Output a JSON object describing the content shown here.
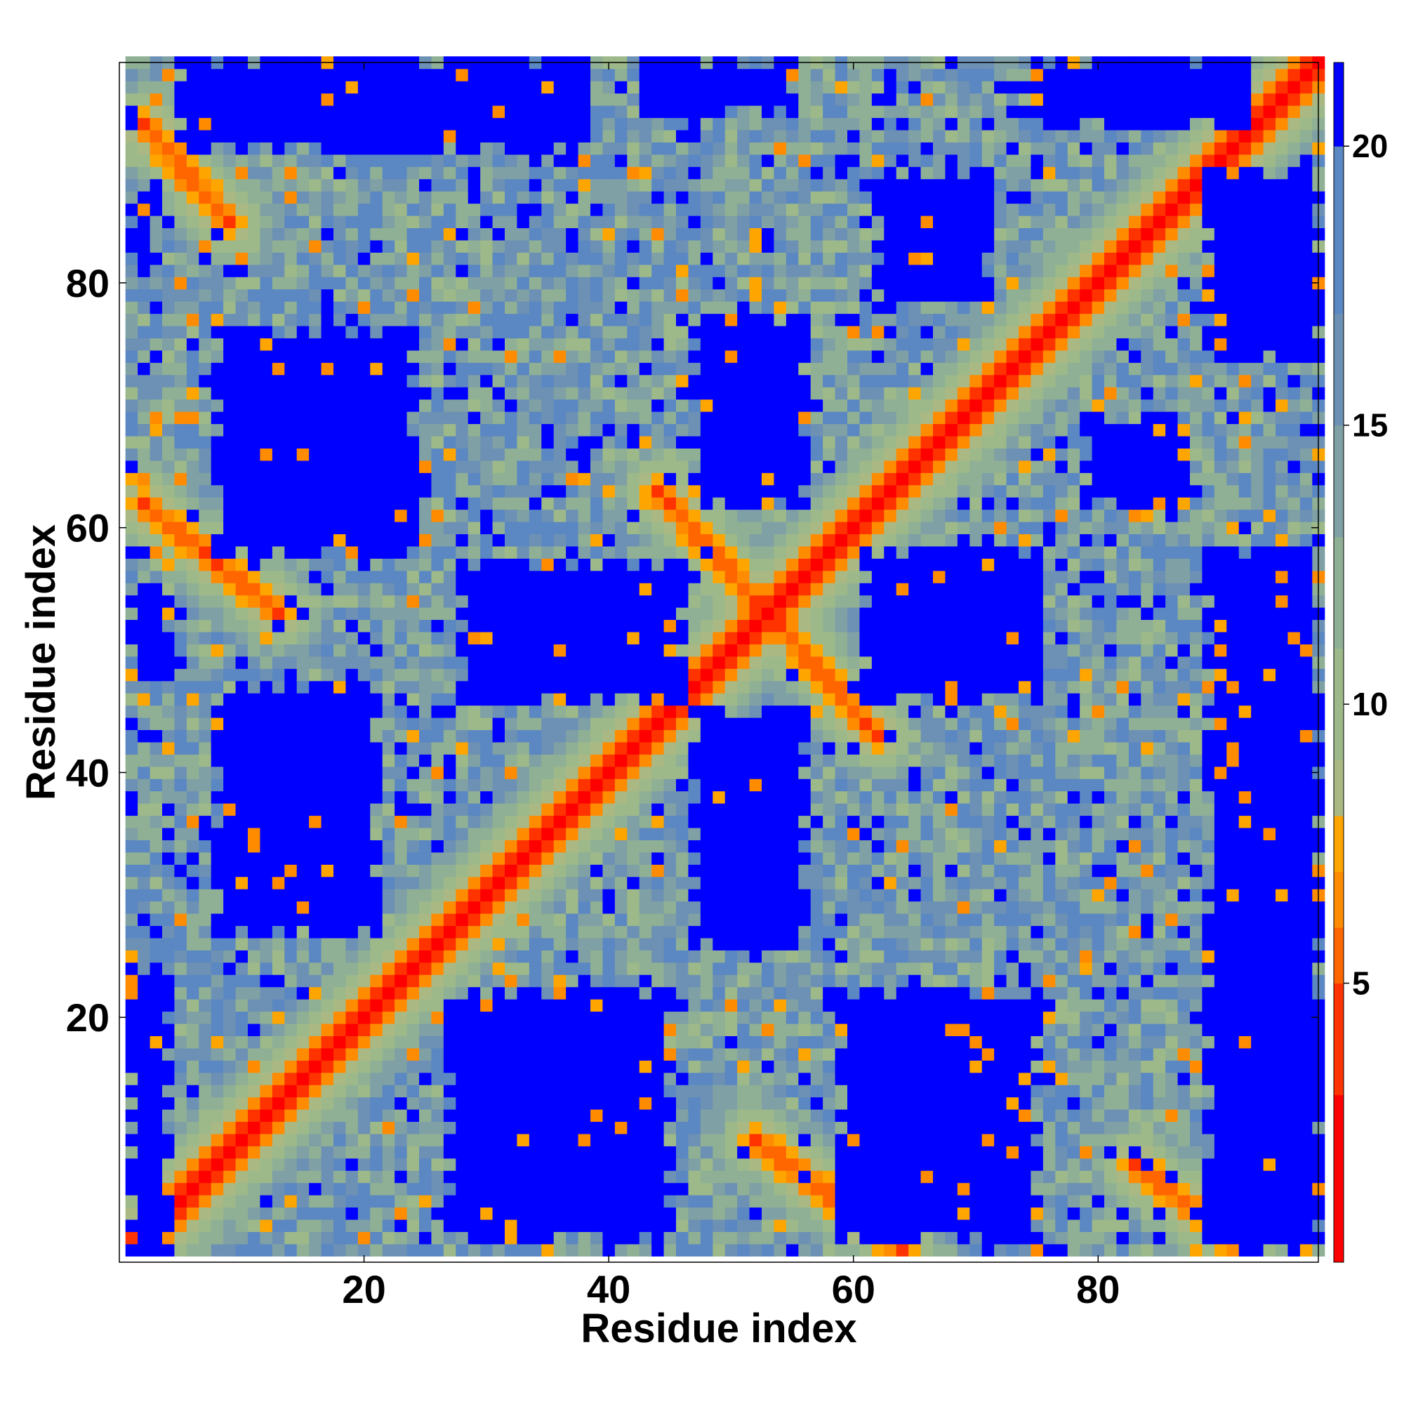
{
  "chart_data": {
    "type": "heatmap",
    "title": "",
    "xlabel": "Residue index",
    "ylabel": "Residue index",
    "n_residues": 98,
    "xlim": [
      1,
      98
    ],
    "ylim": [
      1,
      98
    ],
    "x_ticks": [
      20,
      40,
      60,
      80
    ],
    "y_ticks": [
      20,
      40,
      60,
      80
    ],
    "grid": false,
    "legend": "colorbar-right",
    "colorbar": {
      "ticks": [
        5,
        10,
        15,
        20
      ],
      "range": [
        0,
        21.5
      ],
      "levels": [
        {
          "max": 3,
          "color": "#ff0000"
        },
        {
          "max": 5,
          "color": "#ff3300"
        },
        {
          "max": 6,
          "color": "#ff6600"
        },
        {
          "max": 7,
          "color": "#ff8c00"
        },
        {
          "max": 8,
          "color": "#ffa500"
        },
        {
          "max": 9,
          "color": "#aab884"
        },
        {
          "max": 11,
          "color": "#9db98a"
        },
        {
          "max": 13,
          "color": "#8fb095"
        },
        {
          "max": 15,
          "color": "#7fa0a4"
        },
        {
          "max": 17,
          "color": "#6d91b4"
        },
        {
          "max": 20,
          "color": "#5b87c2"
        },
        {
          "max": 21.5,
          "color": "#0000ff"
        }
      ]
    },
    "structure": {
      "bands": [
        {
          "center_i": 1,
          "center_j": 1,
          "direction": "diagonal",
          "note": "main diagonal i=j"
        },
        {
          "from": [
            2,
            62
          ],
          "to": [
            13,
            53
          ],
          "direction": "anti-diagonal"
        },
        {
          "from": [
            2,
            93
          ],
          "to": [
            9,
            85
          ],
          "direction": "anti-diagonal"
        },
        {
          "from": [
            44,
            63
          ],
          "to": [
            62,
            43
          ],
          "direction": "anti-diagonal"
        },
        {
          "from": [
            52,
            10
          ],
          "to": [
            64,
            1
          ],
          "direction": "anti-diagonal"
        },
        {
          "from": [
            83,
            8
          ],
          "to": [
            92,
            1
          ],
          "direction": "anti-diagonal"
        }
      ],
      "voids": [
        {
          "x": [
            8,
            24
          ],
          "y": [
            58,
            76
          ]
        },
        {
          "x": [
            8,
            21
          ],
          "y": [
            27,
            47
          ]
        },
        {
          "x": [
            28,
            46
          ],
          "y": [
            46,
            57
          ]
        },
        {
          "x": [
            27,
            45
          ],
          "y": [
            2,
            22
          ]
        },
        {
          "x": [
            47,
            56
          ],
          "y": [
            26,
            45
          ]
        },
        {
          "x": [
            47,
            56
          ],
          "y": [
            62,
            77
          ]
        },
        {
          "x": [
            61,
            75
          ],
          "y": [
            46,
            58
          ]
        },
        {
          "x": [
            59,
            75
          ],
          "y": [
            2,
            22
          ]
        },
        {
          "x": [
            62,
            71
          ],
          "y": [
            78,
            89
          ]
        },
        {
          "x": [
            79,
            87
          ],
          "y": [
            62,
            69
          ]
        },
        {
          "x": [
            89,
            98
          ],
          "y": [
            1,
            58
          ]
        },
        {
          "x": [
            89,
            98
          ],
          "y": [
            74,
            89
          ]
        },
        {
          "x": [
            5,
            38
          ],
          "y": [
            91,
            98
          ]
        },
        {
          "x": [
            43,
            55
          ],
          "y": [
            94,
            98
          ]
        },
        {
          "x": [
            75,
            92
          ],
          "y": [
            93,
            98
          ]
        },
        {
          "x": [
            1,
            4
          ],
          "y": [
            1,
            24
          ]
        },
        {
          "x": [
            1,
            4
          ],
          "y": [
            48,
            55
          ]
        },
        {
          "x": [
            1,
            3
          ],
          "y": [
            82,
            88
          ]
        }
      ]
    }
  }
}
